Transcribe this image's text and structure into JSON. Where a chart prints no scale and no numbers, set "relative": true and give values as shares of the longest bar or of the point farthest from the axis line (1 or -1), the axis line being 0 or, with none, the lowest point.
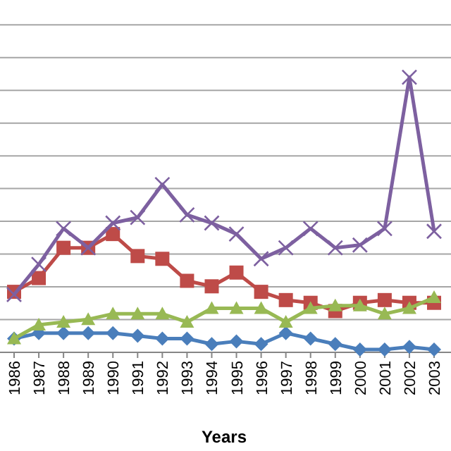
{
  "chart_data": {
    "type": "line",
    "relative": true,
    "xlabel": "Years",
    "grid": "y",
    "categories": [
      "1986",
      "1987",
      "1988",
      "1989",
      "1990",
      "1991",
      "1992",
      "1993",
      "1994",
      "1995",
      "1996",
      "1997",
      "1998",
      "1999",
      "2000",
      "2001",
      "2002",
      "2003"
    ],
    "series": [
      {
        "color": "#4a7ebb",
        "marker": "diamond",
        "values": [
          0.05,
          0.07,
          0.07,
          0.07,
          0.07,
          0.06,
          0.05,
          0.05,
          0.03,
          0.04,
          0.03,
          0.07,
          0.05,
          0.03,
          0.01,
          0.01,
          0.02,
          0.01
        ]
      },
      {
        "color": "#be4b48",
        "marker": "square",
        "values": [
          0.22,
          0.27,
          0.38,
          0.38,
          0.43,
          0.35,
          0.34,
          0.26,
          0.24,
          0.29,
          0.22,
          0.19,
          0.18,
          0.15,
          0.18,
          0.19,
          0.18,
          0.18
        ]
      },
      {
        "color": "#98b954",
        "marker": "triangle",
        "values": [
          0.05,
          0.1,
          0.11,
          0.12,
          0.14,
          0.14,
          0.14,
          0.11,
          0.16,
          0.16,
          0.16,
          0.11,
          0.16,
          0.17,
          0.17,
          0.14,
          0.16,
          0.2
        ]
      },
      {
        "color": "#7d60a0",
        "marker": "cross",
        "values": [
          0.21,
          0.32,
          0.45,
          0.38,
          0.47,
          0.49,
          0.61,
          0.5,
          0.47,
          0.43,
          0.34,
          0.38,
          0.45,
          0.38,
          0.39,
          0.45,
          1,
          0.44
        ]
      }
    ]
  }
}
